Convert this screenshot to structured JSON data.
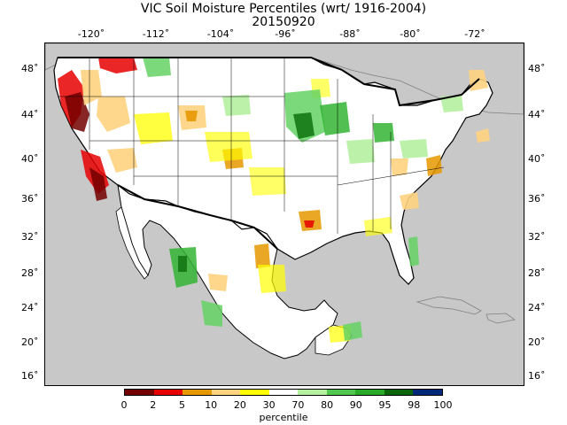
{
  "title": "VIC Soil Moisture Percentiles (wrt/ 1916-2004)",
  "date": "20150920",
  "lon_ticks": [
    "-120˚",
    "-112˚",
    "-104˚",
    "-96˚",
    "-88˚",
    "-80˚",
    "-72˚"
  ],
  "lat_ticks": [
    "48˚",
    "44˚",
    "40˚",
    "36˚",
    "32˚",
    "28˚",
    "24˚",
    "20˚",
    "16˚"
  ],
  "legend": {
    "title": "percentile",
    "labels": [
      "0",
      "2",
      "5",
      "10",
      "20",
      "30",
      "70",
      "80",
      "90",
      "95",
      "98",
      "100"
    ],
    "colors": [
      "#730000",
      "#e60000",
      "#e69800",
      "#fed37f",
      "#ffff00",
      "#ffffff",
      "#b4f0a0",
      "#64d264",
      "#32b432",
      "#147814",
      "#0a3c0a"
    ],
    "colors_alt": [
      "#730000",
      "#e60000",
      "#e69800",
      "#fed37f",
      "#ffff00",
      "#ffffff",
      "#b4f0a0",
      "#50c850",
      "#28aa28",
      "#0a640a",
      "#002878"
    ]
  },
  "colors": {
    "ocean": "#c8c8c8",
    "land_other": "#c8c8c8",
    "land_domain": "#ffffff"
  }
}
